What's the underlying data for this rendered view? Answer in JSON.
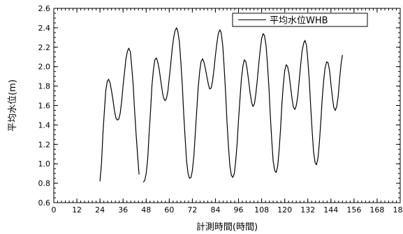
{
  "chart_data": {
    "type": "line",
    "xlabel": "計測時間(時間)",
    "ylabel": "平均水位(m)",
    "xlim": [
      0,
      180
    ],
    "ylim": [
      0.6,
      2.6
    ],
    "x_ticks": [
      "0",
      "12",
      "24",
      "36",
      "48",
      "60",
      "72",
      "84",
      "96",
      "108",
      "120",
      "132",
      "144",
      "156",
      "168",
      "180"
    ],
    "y_ticks": [
      "0.6",
      "0.8",
      "1.0",
      "1.2",
      "1.4",
      "1.6",
      "1.8",
      "2.0",
      "2.2",
      "2.4",
      "2.6"
    ],
    "x_minor_step": 2,
    "y_minor_step": 0.05,
    "grid": false,
    "legend_position": "top-right",
    "series": [
      {
        "name": "平均水位WHB",
        "color": "#000000",
        "segments": [
          [
            [
              24.0,
              0.82
            ],
            [
              24.8,
              1.0
            ],
            [
              25.5,
              1.3
            ],
            [
              26.3,
              1.55
            ],
            [
              27.0,
              1.75
            ],
            [
              27.8,
              1.85
            ],
            [
              28.5,
              1.87
            ],
            [
              29.3,
              1.83
            ],
            [
              30.0,
              1.75
            ],
            [
              30.8,
              1.65
            ],
            [
              31.5,
              1.55
            ],
            [
              32.3,
              1.47
            ],
            [
              33.0,
              1.45
            ],
            [
              33.8,
              1.46
            ],
            [
              34.5,
              1.52
            ],
            [
              35.3,
              1.65
            ],
            [
              36.0,
              1.8
            ],
            [
              36.8,
              1.95
            ],
            [
              37.5,
              2.08
            ],
            [
              38.3,
              2.16
            ],
            [
              39.0,
              2.19
            ],
            [
              39.8,
              2.15
            ],
            [
              40.5,
              2.0
            ],
            [
              41.3,
              1.8
            ],
            [
              42.0,
              1.55
            ],
            [
              42.8,
              1.3
            ],
            [
              43.5,
              1.1
            ],
            [
              44.3,
              0.89
            ]
          ],
          [
            [
              46.5,
              0.81
            ],
            [
              47.3,
              0.83
            ],
            [
              48.0,
              0.9
            ],
            [
              48.8,
              1.05
            ],
            [
              49.5,
              1.3
            ],
            [
              50.3,
              1.55
            ],
            [
              51.0,
              1.8
            ],
            [
              51.8,
              1.97
            ],
            [
              52.5,
              2.07
            ],
            [
              53.3,
              2.09
            ],
            [
              54.0,
              2.05
            ],
            [
              54.8,
              1.97
            ],
            [
              55.5,
              1.87
            ],
            [
              56.3,
              1.76
            ],
            [
              57.0,
              1.68
            ],
            [
              57.8,
              1.65
            ],
            [
              58.5,
              1.67
            ],
            [
              59.3,
              1.75
            ],
            [
              60.0,
              1.88
            ],
            [
              60.8,
              2.03
            ],
            [
              61.5,
              2.18
            ],
            [
              62.3,
              2.3
            ],
            [
              63.0,
              2.37
            ],
            [
              63.8,
              2.4
            ],
            [
              64.5,
              2.36
            ],
            [
              65.3,
              2.25
            ],
            [
              66.0,
              2.05
            ],
            [
              66.8,
              1.8
            ],
            [
              67.5,
              1.52
            ],
            [
              68.3,
              1.25
            ],
            [
              69.0,
              1.03
            ],
            [
              69.8,
              0.9
            ],
            [
              70.5,
              0.85
            ],
            [
              71.3,
              0.86
            ],
            [
              72.0,
              0.93
            ],
            [
              72.8,
              1.08
            ],
            [
              73.5,
              1.3
            ],
            [
              74.3,
              1.55
            ],
            [
              75.0,
              1.78
            ],
            [
              75.8,
              1.95
            ],
            [
              76.5,
              2.05
            ],
            [
              77.3,
              2.08
            ],
            [
              78.0,
              2.05
            ],
            [
              78.8,
              1.98
            ],
            [
              79.5,
              1.9
            ],
            [
              80.3,
              1.82
            ],
            [
              81.0,
              1.77
            ],
            [
              81.8,
              1.78
            ],
            [
              82.5,
              1.85
            ],
            [
              83.3,
              1.98
            ],
            [
              84.0,
              2.12
            ],
            [
              84.8,
              2.25
            ],
            [
              85.5,
              2.34
            ],
            [
              86.3,
              2.38
            ],
            [
              87.0,
              2.35
            ],
            [
              87.8,
              2.22
            ],
            [
              88.5,
              2.0
            ],
            [
              89.3,
              1.72
            ],
            [
              90.0,
              1.43
            ],
            [
              90.8,
              1.17
            ],
            [
              91.5,
              0.98
            ],
            [
              92.3,
              0.88
            ],
            [
              93.0,
              0.86
            ],
            [
              93.8,
              0.9
            ],
            [
              94.5,
              1.02
            ],
            [
              95.3,
              1.22
            ],
            [
              96.0,
              1.45
            ],
            [
              96.8,
              1.68
            ],
            [
              97.5,
              1.88
            ],
            [
              98.3,
              2.01
            ],
            [
              99.0,
              2.07
            ],
            [
              99.8,
              2.05
            ],
            [
              100.5,
              1.97
            ],
            [
              101.3,
              1.85
            ],
            [
              102.0,
              1.73
            ],
            [
              102.8,
              1.63
            ],
            [
              103.5,
              1.59
            ],
            [
              104.3,
              1.62
            ],
            [
              105.0,
              1.72
            ],
            [
              105.8,
              1.87
            ],
            [
              106.5,
              2.03
            ],
            [
              107.3,
              2.18
            ],
            [
              108.0,
              2.29
            ],
            [
              108.8,
              2.34
            ],
            [
              109.5,
              2.32
            ],
            [
              110.3,
              2.22
            ],
            [
              111.0,
              2.03
            ],
            [
              111.8,
              1.78
            ],
            [
              112.5,
              1.5
            ],
            [
              113.3,
              1.23
            ],
            [
              114.0,
              1.03
            ],
            [
              114.8,
              0.93
            ],
            [
              115.5,
              0.91
            ],
            [
              116.3,
              0.97
            ],
            [
              117.0,
              1.12
            ],
            [
              117.8,
              1.35
            ],
            [
              118.5,
              1.6
            ],
            [
              119.3,
              1.82
            ],
            [
              120.0,
              1.96
            ],
            [
              120.8,
              2.02
            ],
            [
              121.5,
              2.0
            ],
            [
              122.3,
              1.92
            ],
            [
              123.0,
              1.8
            ],
            [
              123.8,
              1.67
            ],
            [
              124.5,
              1.58
            ],
            [
              125.3,
              1.56
            ],
            [
              126.0,
              1.6
            ],
            [
              126.8,
              1.7
            ],
            [
              127.5,
              1.85
            ],
            [
              128.3,
              2.02
            ],
            [
              129.0,
              2.16
            ],
            [
              129.8,
              2.24
            ],
            [
              130.5,
              2.27
            ],
            [
              131.3,
              2.22
            ],
            [
              132.0,
              2.07
            ],
            [
              132.8,
              1.85
            ],
            [
              133.5,
              1.58
            ],
            [
              134.3,
              1.32
            ],
            [
              135.0,
              1.12
            ],
            [
              135.8,
              1.01
            ],
            [
              136.5,
              0.99
            ],
            [
              137.3,
              1.06
            ],
            [
              138.0,
              1.22
            ],
            [
              138.8,
              1.45
            ],
            [
              139.5,
              1.68
            ],
            [
              140.3,
              1.87
            ],
            [
              141.0,
              1.99
            ],
            [
              141.8,
              2.05
            ],
            [
              142.5,
              2.04
            ],
            [
              143.3,
              1.96
            ],
            [
              144.0,
              1.82
            ],
            [
              144.8,
              1.68
            ],
            [
              145.5,
              1.58
            ],
            [
              146.3,
              1.55
            ],
            [
              147.0,
              1.59
            ],
            [
              147.8,
              1.7
            ],
            [
              148.5,
              1.87
            ],
            [
              149.3,
              2.03
            ],
            [
              150.0,
              2.12
            ]
          ]
        ]
      }
    ]
  }
}
